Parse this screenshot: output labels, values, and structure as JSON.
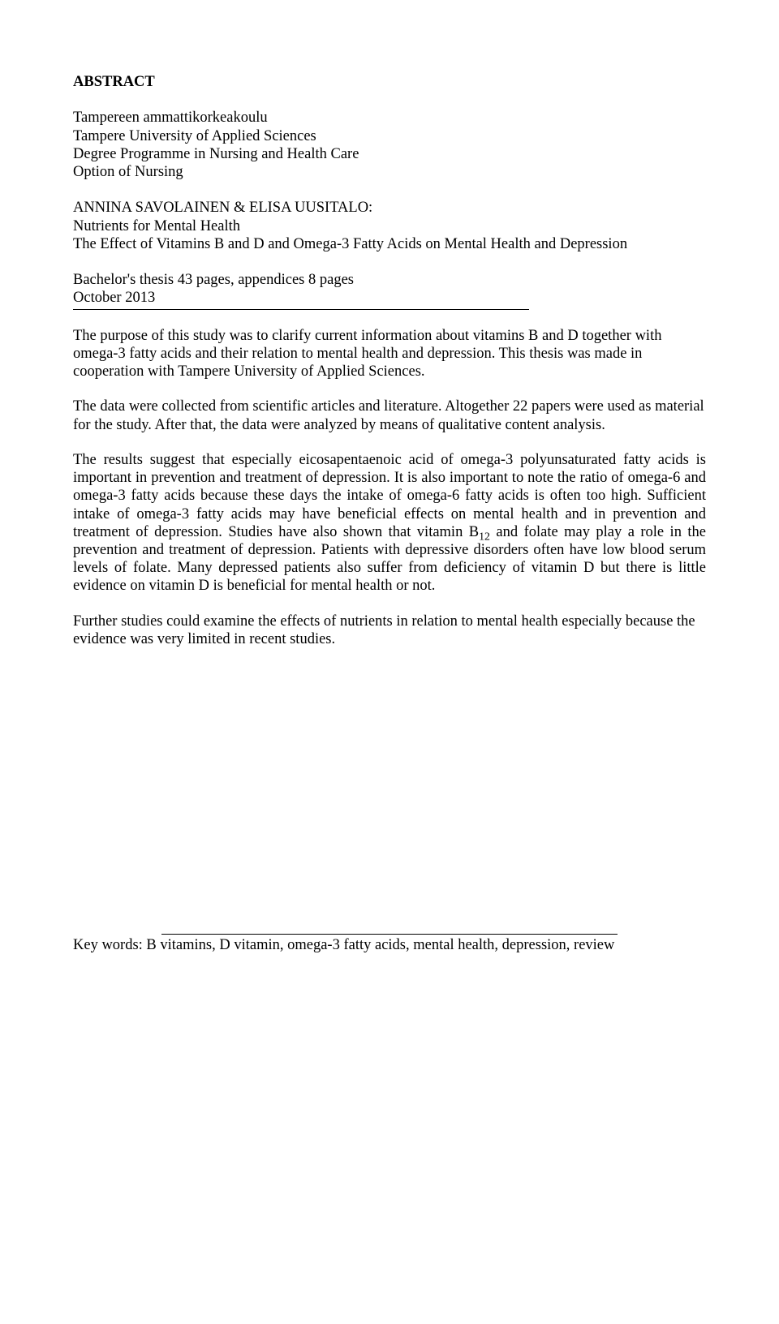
{
  "heading": "ABSTRACT",
  "meta": {
    "institution_fi": "Tampereen ammattikorkeakoulu",
    "institution_en": "Tampere University of Applied Sciences",
    "programme": "Degree Programme in Nursing and Health Care",
    "option": "Option of Nursing"
  },
  "authors_title": {
    "authors": "ANNINA SAVOLAINEN & ELISA UUSITALO:",
    "title": "Nutrients for Mental Health",
    "subtitle": "The Effect of Vitamins B and D and Omega-3 Fatty Acids on Mental Health and Depression"
  },
  "thesis_info": {
    "line1": "Bachelor's thesis 43 pages, appendices 8 pages",
    "line2": "October 2013"
  },
  "body": {
    "p1": "The purpose of this study was to clarify current information about vitamins B and D together with omega-3 fatty acids and their relation to mental health and depression. This thesis was made in cooperation with Tampere University of Applied Sciences.",
    "p2": "The data were collected from scientific articles and literature. Altogether 22 papers were used as material for the study. After that, the data were analyzed by means of qualitative content analysis.",
    "p3_a": "The results suggest that especially eicosapentaenoic acid of omega-3 polyunsaturated fatty acids is important in prevention and treatment of depression. It is also important to note the ratio of omega-6 and omega-3 fatty acids because these days the intake of omega-6 fatty acids is often too high. Sufficient intake of omega-3 fatty acids may have beneficial effects on mental health and in prevention and treatment of depression. Studies have also shown that vitamin B",
    "p3_sub": "12",
    "p3_b": " and folate may play a role in the prevention and treatment of depression. Patients with depressive disorders often have low blood serum levels of folate. Many depressed patients also suffer from deficiency of vitamin D but there is little evidence on vitamin D is beneficial for mental health or not.",
    "p4": "Further studies could examine the effects of nutrients in relation to mental health especially because the evidence was very limited in recent studies."
  },
  "keywords": "Key words: B vitamins, D vitamin, omega-3 fatty acids, mental health, depression, review"
}
